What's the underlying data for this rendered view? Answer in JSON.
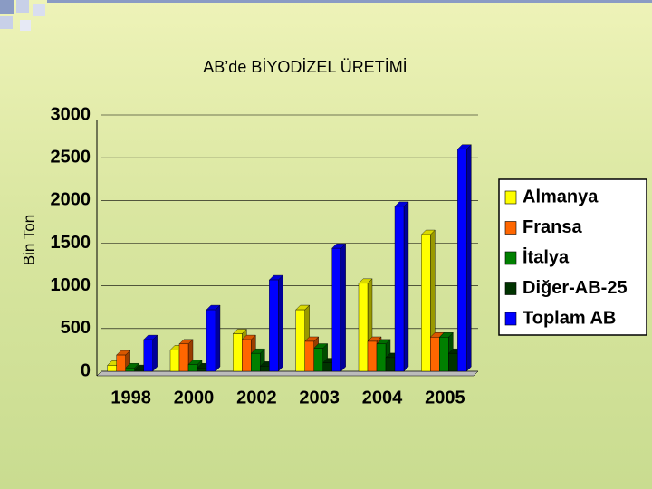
{
  "chart_data": {
    "type": "bar",
    "title": "AB’de BİYODİZEL ÜRETİMİ",
    "y_label": "Bin Ton",
    "categories": [
      "1998",
      "2000",
      "2002",
      "2003",
      "2004",
      "2005"
    ],
    "series": [
      {
        "name": "Almanya",
        "color": "#ffff00",
        "values": [
          70,
          250,
          440,
          720,
          1030,
          1600
        ]
      },
      {
        "name": "Fransa",
        "color": "#ff6600",
        "values": [
          190,
          320,
          370,
          350,
          350,
          400
        ]
      },
      {
        "name": "İtalya",
        "color": "#008000",
        "values": [
          40,
          80,
          210,
          270,
          320,
          400
        ]
      },
      {
        "name": "Diğer-AB-25",
        "color": "#003300",
        "values": [
          20,
          40,
          60,
          100,
          160,
          210
        ]
      },
      {
        "name": "Toplam AB",
        "color": "#0000ff",
        "values": [
          370,
          720,
          1070,
          1440,
          1930,
          2600
        ]
      }
    ],
    "ylim": [
      0,
      3000
    ],
    "yticks": [
      0,
      500,
      1000,
      1500,
      2000,
      2500,
      3000
    ],
    "grid": true,
    "legend": "right"
  }
}
